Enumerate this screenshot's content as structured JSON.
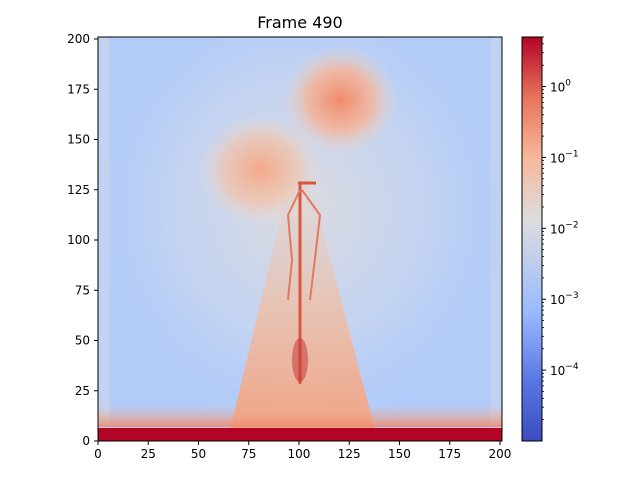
{
  "chart_data": {
    "type": "heatmap",
    "title": "Frame 490",
    "xlabel": "",
    "ylabel": "",
    "xlim": [
      0,
      201
    ],
    "ylim": [
      0,
      201
    ],
    "x_ticks": [
      "0",
      "25",
      "50",
      "75",
      "100",
      "125",
      "150",
      "175",
      "200"
    ],
    "y_ticks": [
      "0",
      "25",
      "50",
      "75",
      "100",
      "125",
      "150",
      "175",
      "200"
    ],
    "colormap": "coolwarm",
    "color_scale": "log",
    "colorbar": {
      "range": [
        1e-05,
        5
      ],
      "ticks": [
        "10",
        "10",
        "10",
        "10",
        "10"
      ],
      "tick_exponents": [
        "0",
        "−1",
        "−2",
        "−3",
        "−4"
      ]
    },
    "features": [
      {
        "label": "bottom boundary band",
        "y": [
          0,
          4
        ],
        "level": "max"
      },
      {
        "label": "upper plume lobe",
        "x": 122,
        "y": 170,
        "level": "high"
      },
      {
        "label": "left plume lobe",
        "x": 80,
        "y": 133,
        "level": "high"
      },
      {
        "label": "central column",
        "x": 100,
        "y": [
          27,
          128
        ],
        "level": "high"
      },
      {
        "label": "lower cone",
        "x": [
          60,
          140
        ],
        "y": [
          0,
          90
        ],
        "level": "medium"
      }
    ],
    "grid": false,
    "legend": "colorbar-right"
  },
  "colors": {
    "low": "#3b4cc0",
    "mid": "#dddddd",
    "high": "#b40426"
  }
}
